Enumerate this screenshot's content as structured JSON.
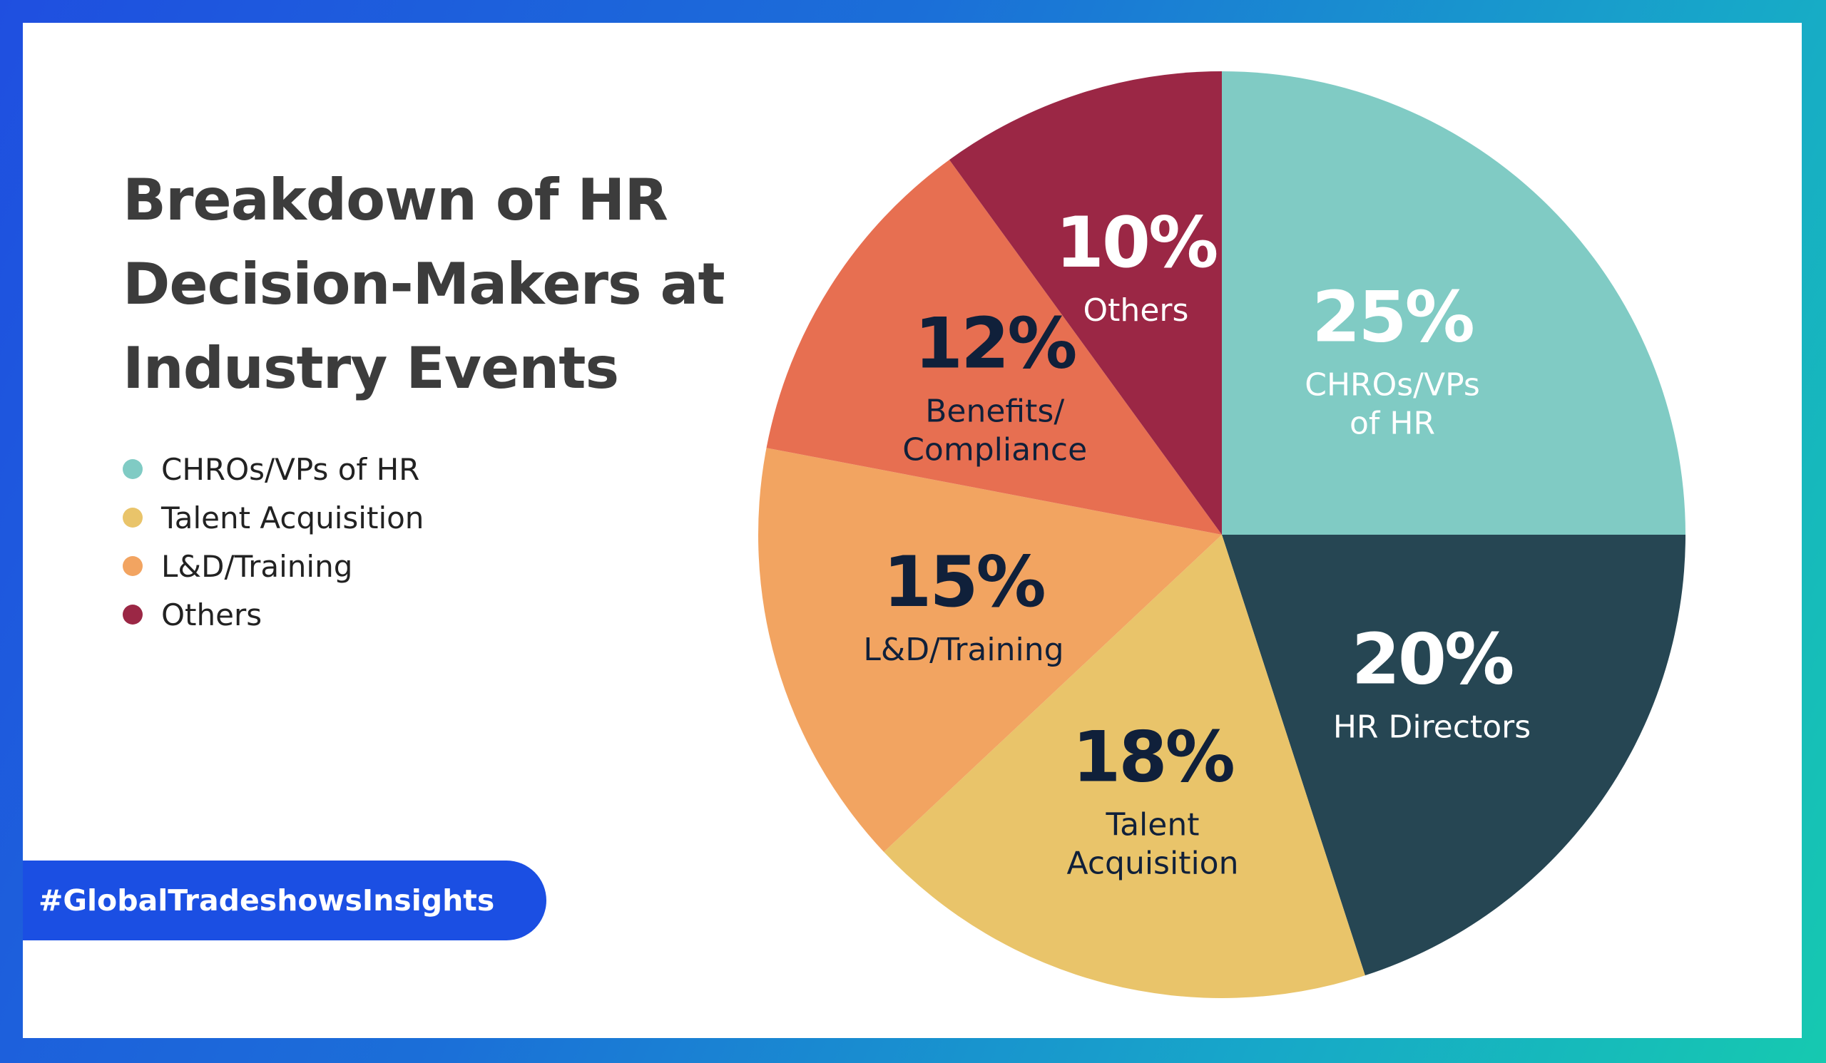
{
  "chart_data": {
    "type": "pie",
    "title": "Breakdown of HR Decision-Makers at Industry Events",
    "slices": [
      {
        "label_lines": [
          "CHROs/VPs",
          "of HR"
        ],
        "value": 25,
        "value_label": "25%",
        "color": "#80cbc4",
        "text_color": "#ffffff"
      },
      {
        "label_lines": [
          "HR Directors"
        ],
        "value": 20,
        "value_label": "20%",
        "color": "#264653",
        "text_color": "#ffffff"
      },
      {
        "label_lines": [
          "Talent",
          "Acquisition"
        ],
        "value": 18,
        "value_label": "18%",
        "color": "#e9c46a",
        "text_color": "#10203a"
      },
      {
        "label_lines": [
          "L&D/Training"
        ],
        "value": 15,
        "value_label": "15%",
        "color": "#f2a461",
        "text_color": "#10203a"
      },
      {
        "label_lines": [
          "Benefits/",
          "Compliance"
        ],
        "value": 12,
        "value_label": "12%",
        "color": "#e76f51",
        "text_color": "#10203a"
      },
      {
        "label_lines": [
          "Others"
        ],
        "value": 10,
        "value_label": "10%",
        "color": "#9b2745",
        "text_color": "#ffffff"
      }
    ],
    "legend": [
      {
        "label": "CHROs/VPs of HR",
        "color": "#80cbc4"
      },
      {
        "label": "Talent Acquisition",
        "color": "#e9c46a"
      },
      {
        "label": "L&D/Training",
        "color": "#f2a461"
      },
      {
        "label": "Others",
        "color": "#9b2745"
      }
    ],
    "legend_position": "left"
  },
  "title_lines": [
    "Breakdown of HR",
    "Decision-Makers at",
    "Industry Events"
  ],
  "hashtag": "#GlobalTradeshowsInsights",
  "colors": {
    "frame_gradient": [
      "#1f4fe0",
      "#16c9b0"
    ],
    "card_background": "#ffffff",
    "title_text": "#3c3c3c",
    "hashtag_pill": "#1b4fe3"
  }
}
